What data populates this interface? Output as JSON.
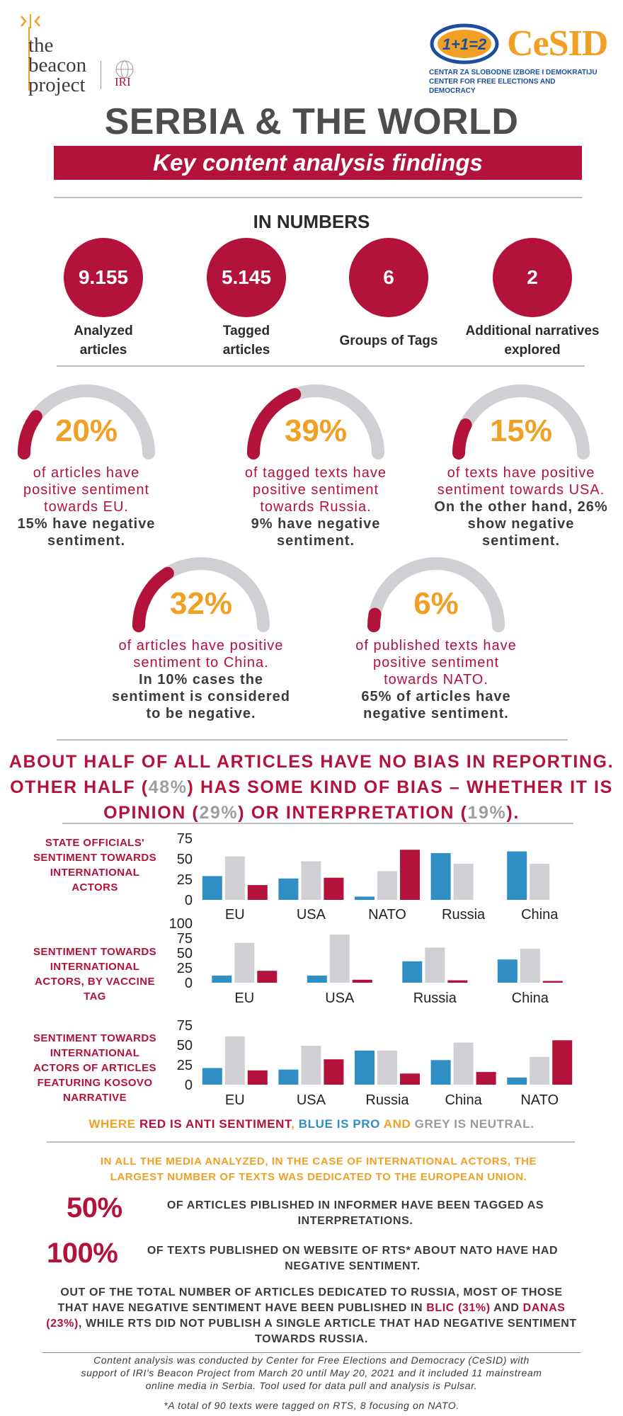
{
  "header": {
    "beacon_line1": "the",
    "beacon_line2": "beacon",
    "beacon_line3": "project",
    "iri": "IRI",
    "cesid_logo_text": "1+1=2",
    "cesid_name": "CeSID",
    "cesid_sub_line1": "CENTAR ZA SLOBODNE IZBORE I DEMOKRATIJU",
    "cesid_sub_line2": "CENTER FOR FREE ELECTIONS AND DEMOCRACY"
  },
  "title": "SERBIA & THE WORLD",
  "banner": "Key content analysis findings",
  "in_numbers": {
    "title": "IN NUMBERS",
    "items": [
      {
        "value": "9.155",
        "label1": "Analyzed",
        "label2": "articles"
      },
      {
        "value": "5.145",
        "label1": "Tagged",
        "label2": "articles"
      },
      {
        "value": "6",
        "label1": "Groups of Tags",
        "label2": ""
      },
      {
        "value": "2",
        "label1": "Additional narratives",
        "label2": "explored"
      }
    ]
  },
  "gauges": [
    {
      "pct": "20%",
      "fraction": 0.2,
      "pos": [
        "of articles have",
        "positive sentiment",
        "towards EU."
      ],
      "neg": [
        "15% have negative",
        "sentiment."
      ]
    },
    {
      "pct": "39%",
      "fraction": 0.39,
      "pos": [
        "of tagged texts have",
        "positive sentiment",
        "towards Russia."
      ],
      "neg": [
        "9% have negative",
        "sentiment."
      ]
    },
    {
      "pct": "15%",
      "fraction": 0.15,
      "pos": [
        "of texts have positive",
        "sentiment towards USA."
      ],
      "neg": [
        "On the other hand, 26%",
        "show negative",
        "sentiment."
      ]
    },
    {
      "pct": "32%",
      "fraction": 0.32,
      "pos": [
        "of articles have positive",
        "sentiment to China."
      ],
      "neg": [
        "In 10% cases the",
        "sentiment is considered",
        "to be negative."
      ]
    },
    {
      "pct": "6%",
      "fraction": 0.06,
      "pos": [
        "of published texts have",
        "positive sentiment",
        "towards NATO."
      ],
      "neg": [
        "65% of articles have",
        "negative sentiment."
      ]
    }
  ],
  "bias": {
    "line1": "ABOUT HALF OF ALL ARTICLES HAVE NO BIAS IN REPORTING.",
    "line2_a": "OTHER HALF (",
    "line2_b": "48%",
    "line2_c": ") HAS SOME KIND OF BIAS – WHETHER IT IS",
    "line3_a": "OPINION (",
    "line3_b": "29%",
    "line3_c": ") OR INTERPRETATION (",
    "line3_d": "19%",
    "line3_e": ")."
  },
  "colors": {
    "pro": "#2f8fc5",
    "neutral": "#d0d0d4",
    "anti": "#b3123a"
  },
  "chart_data": [
    {
      "type": "bar",
      "title": "STATE OFFICIALS' SENTIMENT TOWARDS INTERNATIONAL ACTORS",
      "categories": [
        "EU",
        "USA",
        "NATO",
        "Russia",
        "China"
      ],
      "yticks": [
        0,
        25,
        50,
        75
      ],
      "ylim": [
        0,
        75
      ],
      "series": [
        {
          "role": "pro",
          "values": [
            29,
            26,
            4,
            57,
            59
          ]
        },
        {
          "role": "neutral",
          "values": [
            53,
            47,
            35,
            44,
            44
          ]
        },
        {
          "role": "anti",
          "values": [
            18,
            27,
            61,
            0,
            0
          ]
        }
      ]
    },
    {
      "type": "bar",
      "title": "SENTIMENT TOWARDS INTERNATIONAL ACTORS, BY VACCINE TAG",
      "categories": [
        "EU",
        "USA",
        "Russia",
        "China"
      ],
      "yticks": [
        0,
        25,
        50,
        75,
        100
      ],
      "ylim": [
        0,
        100
      ],
      "series": [
        {
          "role": "pro",
          "values": [
            12,
            12,
            36,
            39
          ]
        },
        {
          "role": "neutral",
          "values": [
            67,
            81,
            59,
            57
          ]
        },
        {
          "role": "anti",
          "values": [
            20,
            5,
            4,
            3
          ]
        }
      ]
    },
    {
      "type": "bar",
      "title": "SENTIMENT TOWARDS INTERNATIONAL ACTORS OF ARTICLES FEATURING KOSOVO NARRATIVE",
      "categories": [
        "EU",
        "USA",
        "Russia",
        "China",
        "NATO"
      ],
      "yticks": [
        0,
        25,
        50,
        75
      ],
      "ylim": [
        0,
        75
      ],
      "series": [
        {
          "role": "pro",
          "values": [
            21,
            19,
            43,
            31,
            9
          ]
        },
        {
          "role": "neutral",
          "values": [
            61,
            49,
            43,
            53,
            35
          ]
        },
        {
          "role": "anti",
          "values": [
            18,
            32,
            14,
            16,
            56
          ]
        }
      ]
    }
  ],
  "legend": {
    "p1": "WHERE ",
    "p2": "RED IS ANTI SENTIMENT",
    "p3": ", ",
    "p4": "BLUE IS PRO",
    "p5": " AND ",
    "p6": "GREY IS NEUTRAL",
    "p7": "."
  },
  "findings": {
    "intro_line1": "IN ALL THE MEDIA ANALYZED, IN THE CASE OF INTERNATIONAL ACTORS, THE",
    "intro_line2": "LARGEST NUMBER OF TEXTS WAS DEDICATED TO THE EUROPEAN UNION.",
    "stat1_pct": "50%",
    "stat1_line1": "OF ARTICLES PIBLISHED IN INFORMER HAVE BEEN TAGGED AS",
    "stat1_line2": "INTERPRETATIONS.",
    "stat2_pct": "100%",
    "stat2_line1": "OF TEXTS PUBLISHED ON WEBSITE OF RTS* ABOUT NATO HAVE HAD",
    "stat2_line2": "NEGATIVE SENTIMENT.",
    "russia_line1": "OUT OF THE TOTAL NUMBER OF ARTICLES DEDICATED TO RUSSIA, MOST OF THOSE",
    "russia_line2_a": "THAT HAVE NEGATIVE SENTIMENT HAVE BEEN PUBLISHED IN ",
    "russia_blic": "BLIC (31%)",
    "russia_and": " AND ",
    "russia_danas": "DANAS",
    "russia_line3_a": "(23%)",
    "russia_line3_b": ", WHILE RTS DID NOT PUBLISH A SINGLE ARTICLE THAT HAD NEGATIVE SENTIMENT",
    "russia_line4": "TOWARDS RUSSIA."
  },
  "footer": {
    "line1": "Content analysis was conducted by Center for Free Elections and Democracy (CeSID) with",
    "line2": "support of IRI's Beacon Project from March 20 until May 20, 2021 and it included 11 mainstream",
    "line3": "online media in Serbia. Tool used for data pull and analysis is Pulsar.",
    "note": "*A total of 90 texts were tagged on RTS, 8 focusing on NATO."
  }
}
